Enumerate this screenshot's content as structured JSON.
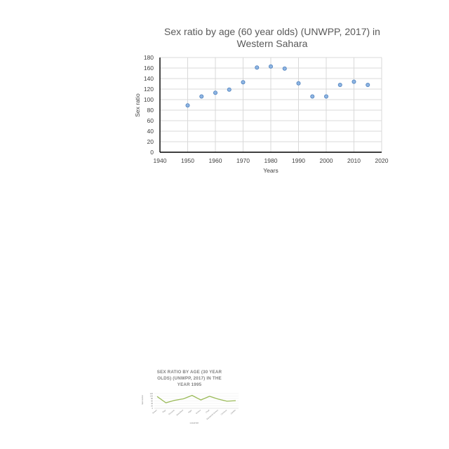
{
  "chart_data": [
    {
      "type": "scatter",
      "title_lines": [
        "Sex ratio by age (60 year olds) (UNWPP, 2017) in",
        "Western Sahara"
      ],
      "xlabel": "Years",
      "ylabel": "Sex ratio",
      "xlim": [
        1940,
        2020
      ],
      "ylim": [
        0,
        180
      ],
      "xticks": [
        "1940",
        "1950",
        "1960",
        "1970",
        "1980",
        "1990",
        "2000",
        "2010",
        "2020"
      ],
      "yticks": [
        "0",
        "20",
        "40",
        "60",
        "80",
        "100",
        "120",
        "140",
        "160",
        "180"
      ],
      "grid": true,
      "colors": {
        "marker_fill": "#8db4e2",
        "marker_stroke": "#4f81bd",
        "grid": "#d9d9d9",
        "axis": "#000000"
      },
      "points": [
        {
          "x": 1950,
          "y": 89
        },
        {
          "x": 1955,
          "y": 106
        },
        {
          "x": 1960,
          "y": 113
        },
        {
          "x": 1965,
          "y": 119
        },
        {
          "x": 1970,
          "y": 133
        },
        {
          "x": 1975,
          "y": 161
        },
        {
          "x": 1980,
          "y": 163
        },
        {
          "x": 1985,
          "y": 159
        },
        {
          "x": 1990,
          "y": 131
        },
        {
          "x": 1995,
          "y": 106
        },
        {
          "x": 2000,
          "y": 106
        },
        {
          "x": 2005,
          "y": 128
        },
        {
          "x": 2010,
          "y": 134
        },
        {
          "x": 2015,
          "y": 128
        }
      ]
    },
    {
      "type": "line",
      "title_lines": [
        "SEX RATIO BY AGE (30 YEAR",
        "OLDS) (UNWPP, 2017) IN THE",
        "YEAR 1995"
      ],
      "xlabel": "COUNTRY",
      "ylabel": "SEX RATIO",
      "ylim": [
        0,
        120
      ],
      "colors": {
        "line": "#9bbb59",
        "grid": "#e6e6e6",
        "axis": "#bfbfbf"
      },
      "yticks": [
        "0",
        "20",
        "40",
        "60",
        "80",
        "100",
        "120"
      ],
      "categories": [
        "Yemen",
        "Togo",
        "Tanzania",
        "Swaziland",
        "Niger",
        "Guinea",
        "Chad",
        "Equatorial Guinea",
        "Comoros",
        "Zambia"
      ],
      "values": [
        96,
        45,
        65,
        77,
        105,
        68,
        98,
        75,
        58,
        62
      ]
    }
  ]
}
